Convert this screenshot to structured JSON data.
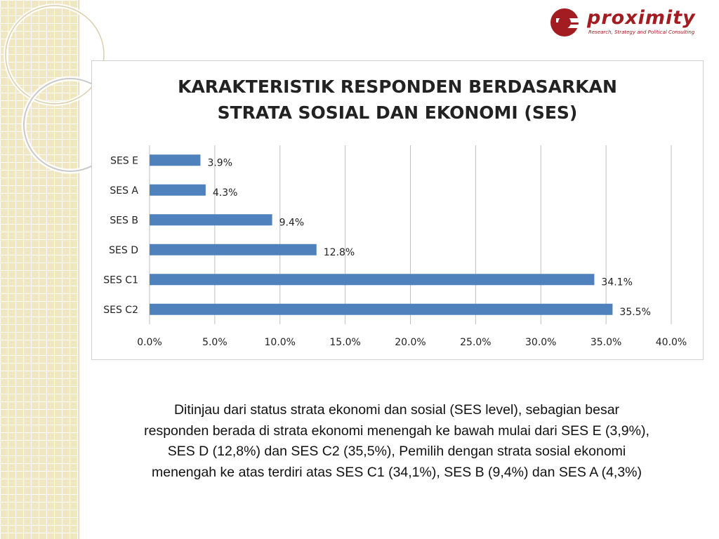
{
  "logo": {
    "name": "proximity",
    "tagline": "Research, Strategy and Political Consulting"
  },
  "chart_data": {
    "type": "bar",
    "orientation": "horizontal",
    "title_line1": "KARAKTERISTIK RESPONDEN BERDASARKAN",
    "title_line2": "STRATA SOSIAL DAN EKONOMI (SES)",
    "categories": [
      "SES E",
      "SES A",
      "SES B",
      "SES D",
      "SES C1",
      "SES C2"
    ],
    "values": [
      3.9,
      4.3,
      9.4,
      12.8,
      34.1,
      35.5
    ],
    "data_labels": [
      "3.9%",
      "4.3%",
      "9.4%",
      "12.8%",
      "34.1%",
      "35.5%"
    ],
    "xlim": [
      0,
      40
    ],
    "x_ticks": [
      0,
      5,
      10,
      15,
      20,
      25,
      30,
      35,
      40
    ],
    "x_tick_labels": [
      "0.0%",
      "5.0%",
      "10.0%",
      "15.0%",
      "20.0%",
      "25.0%",
      "30.0%",
      "35.0%",
      "40.0%"
    ],
    "grid": true,
    "legend": "none",
    "bar_color": "#4f81bd"
  },
  "caption": {
    "line1": "Ditinjau dari  status strata ekonomi dan sosial (SES level),  sebagian besar",
    "line2": "responden berada di strata ekonomi menengah ke bawah mulai dari SES E (3,9%),",
    "line3": "SES D (12,8%) dan SES C2 (35,5%),  Pemilih dengan strata sosial ekonomi",
    "line4": "menengah ke atas terdiri atas SES C1 (34,1%),  SES B (9,4%) dan SES A (4,3%)"
  },
  "colors": {
    "brand": "#a31c22",
    "strip": "#f1e6c2",
    "bar": "#4f81bd"
  }
}
